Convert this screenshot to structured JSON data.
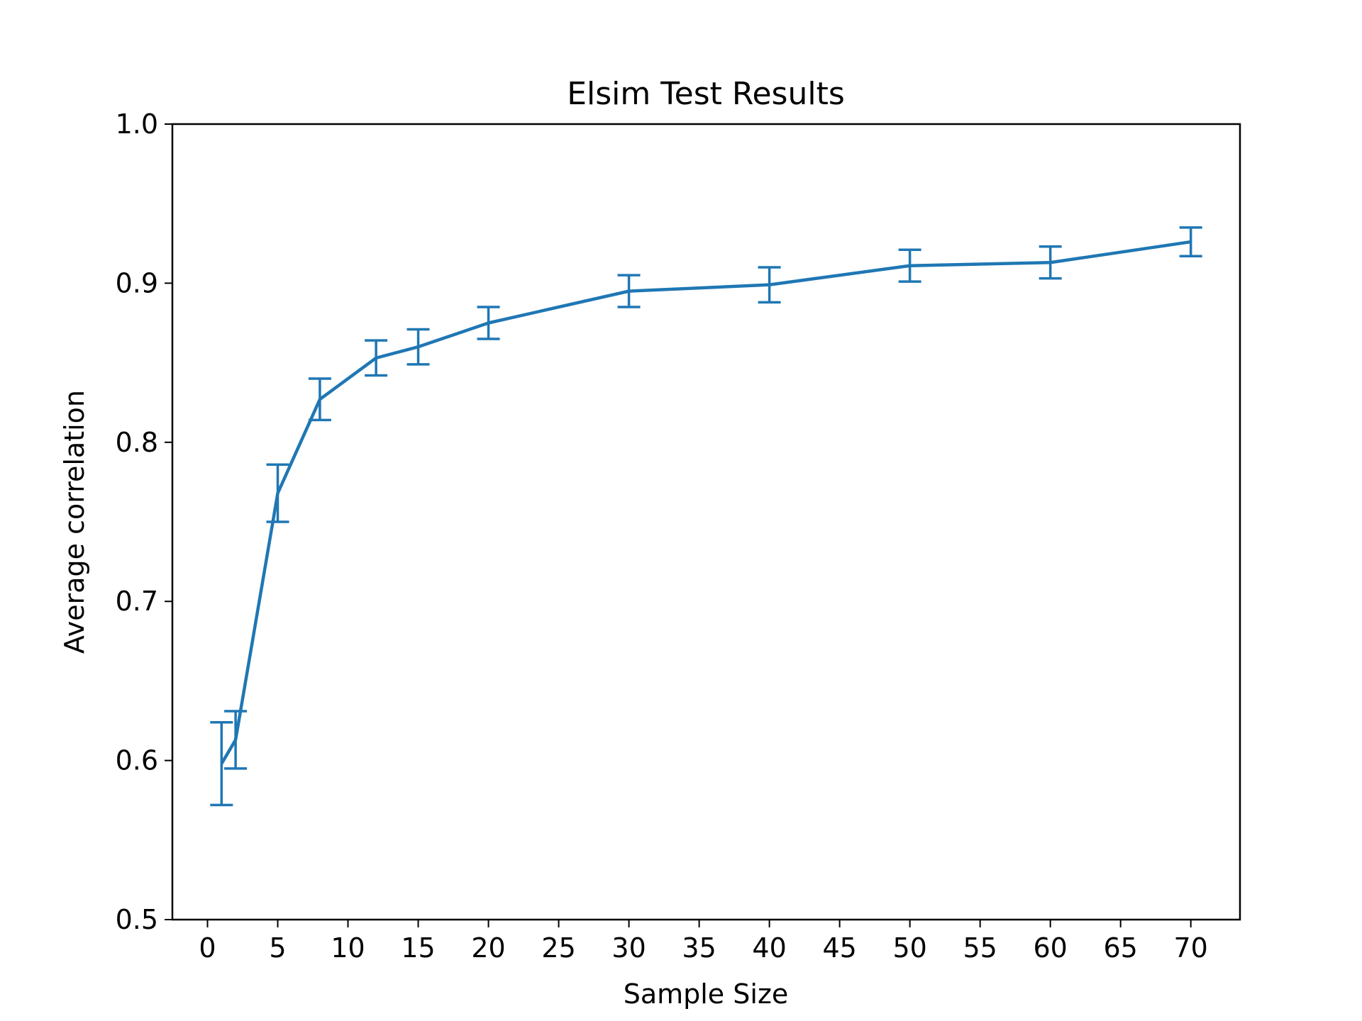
{
  "chart_data": {
    "type": "line",
    "title": "Elsim Test Results",
    "xlabel": "Sample Size",
    "ylabel": "Average correlation",
    "xlim": [
      -2.5,
      73.5
    ],
    "ylim": [
      0.5,
      1.0
    ],
    "xticks": [
      0,
      5,
      10,
      15,
      20,
      25,
      30,
      35,
      40,
      45,
      50,
      55,
      60,
      65,
      70
    ],
    "xtick_labels": [
      "0",
      "5",
      "10",
      "15",
      "20",
      "25",
      "30",
      "35",
      "40",
      "45",
      "50",
      "55",
      "60",
      "65",
      "70"
    ],
    "yticks": [
      0.5,
      0.6,
      0.7,
      0.8,
      0.9,
      1.0
    ],
    "ytick_labels": [
      "0.5",
      "0.6",
      "0.7",
      "0.8",
      "0.9",
      "1.0"
    ],
    "grid": false,
    "color": "#1f77b4",
    "series": [
      {
        "x": [
          1,
          2,
          5,
          8,
          12,
          15,
          20,
          30,
          40,
          50,
          60,
          70
        ],
        "y": [
          0.598,
          0.613,
          0.768,
          0.827,
          0.853,
          0.86,
          0.875,
          0.895,
          0.899,
          0.911,
          0.913,
          0.926
        ],
        "yerr": [
          0.026,
          0.018,
          0.018,
          0.013,
          0.011,
          0.011,
          0.01,
          0.01,
          0.011,
          0.01,
          0.01,
          0.009
        ]
      }
    ]
  }
}
